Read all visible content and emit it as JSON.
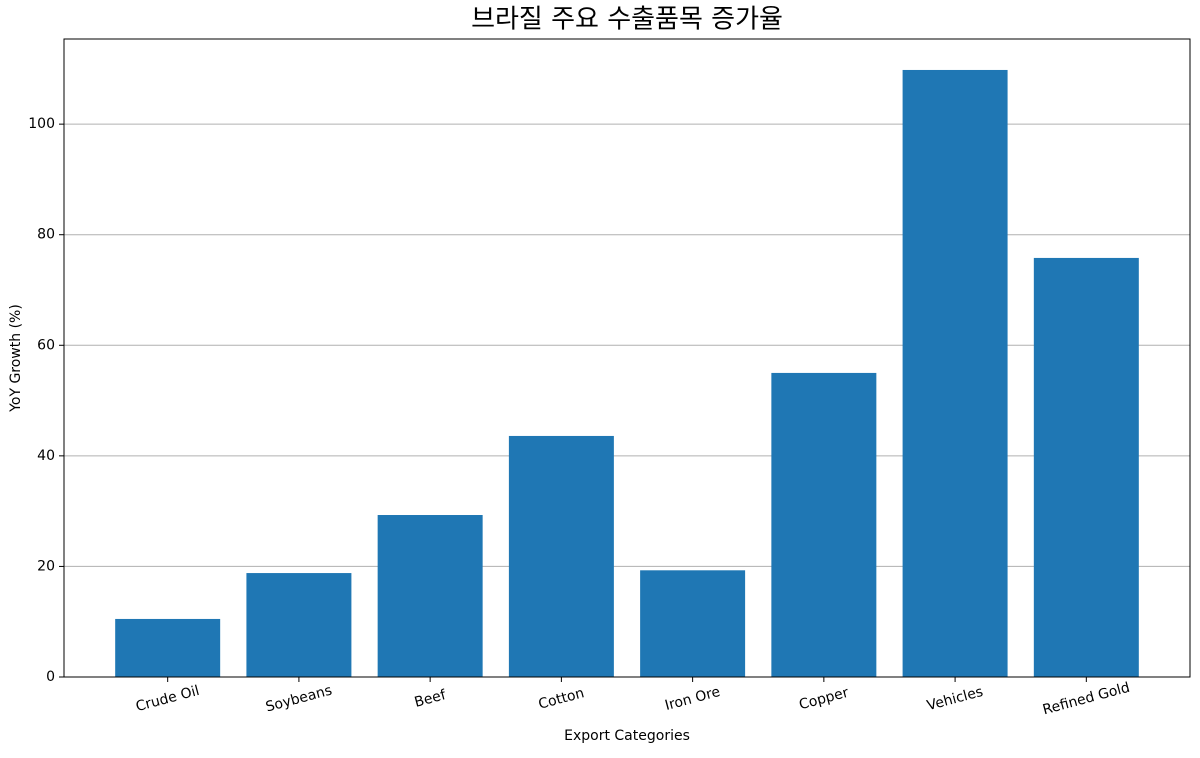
{
  "chart_data": {
    "type": "bar",
    "title": "브라질 주요 수출품목 증가율",
    "x_label": "Export Categories",
    "y_label": "YoY Growth (%)",
    "categories": [
      "Crude Oil",
      "Soybeans",
      "Beef",
      "Cotton",
      "Iron Ore",
      "Copper",
      "Vehicles",
      "Refined Gold"
    ],
    "values": [
      10.5,
      18.8,
      29.3,
      43.6,
      19.3,
      55.0,
      109.8,
      75.8
    ],
    "color": "#1f77b4",
    "ylim": [
      0,
      115.4
    ],
    "yticks": [
      0,
      20,
      40,
      60,
      80,
      100
    ],
    "grid": true
  }
}
